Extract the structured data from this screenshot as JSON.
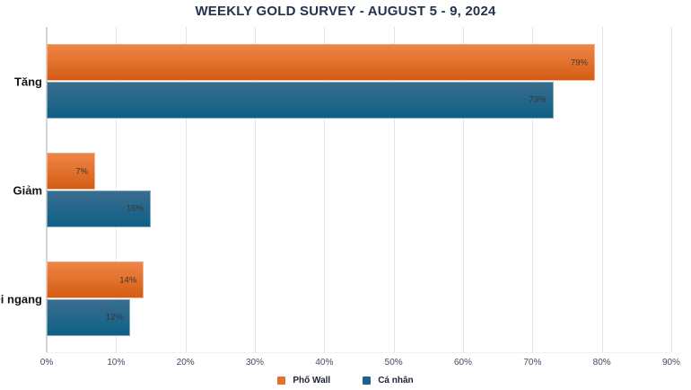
{
  "title": "WEEKLY GOLD SURVEY - AUGUST 5 - 9, 2024",
  "colors": {
    "orange_top": "#ef8546",
    "orange_bottom": "#d45d14",
    "orange_solid": "#e4702b",
    "blue_top": "#3a6d8e",
    "blue_bottom": "#0e6087",
    "blue_solid": "#1d6288",
    "title_text": "#24324d",
    "gridline": "#dde6ef",
    "axis_line": "#d3d7db",
    "bar_label_text": "#3c352c",
    "tick_text": "#3f4a5f"
  },
  "chart_data": {
    "type": "bar",
    "orientation": "horizontal",
    "title": "WEEKLY GOLD SURVEY - AUGUST 5 - 9, 2024",
    "categories": [
      "Tăng",
      "Giảm",
      "Đi ngang"
    ],
    "series": [
      {
        "name": "Phố Wall",
        "color_key": "orange",
        "values": [
          79,
          7,
          14
        ]
      },
      {
        "name": "Cá nhân",
        "color_key": "blue",
        "values": [
          73,
          15,
          12
        ]
      }
    ],
    "value_suffix": "%",
    "xlabel": "",
    "ylabel": "",
    "xlim": [
      0,
      90
    ],
    "tick_step": 10,
    "tick_labels": [
      "0%",
      "10%",
      "20%",
      "30%",
      "40%",
      "50%",
      "60%",
      "70%",
      "80%",
      "90%"
    ],
    "grid": true,
    "legend_position": "bottom"
  }
}
